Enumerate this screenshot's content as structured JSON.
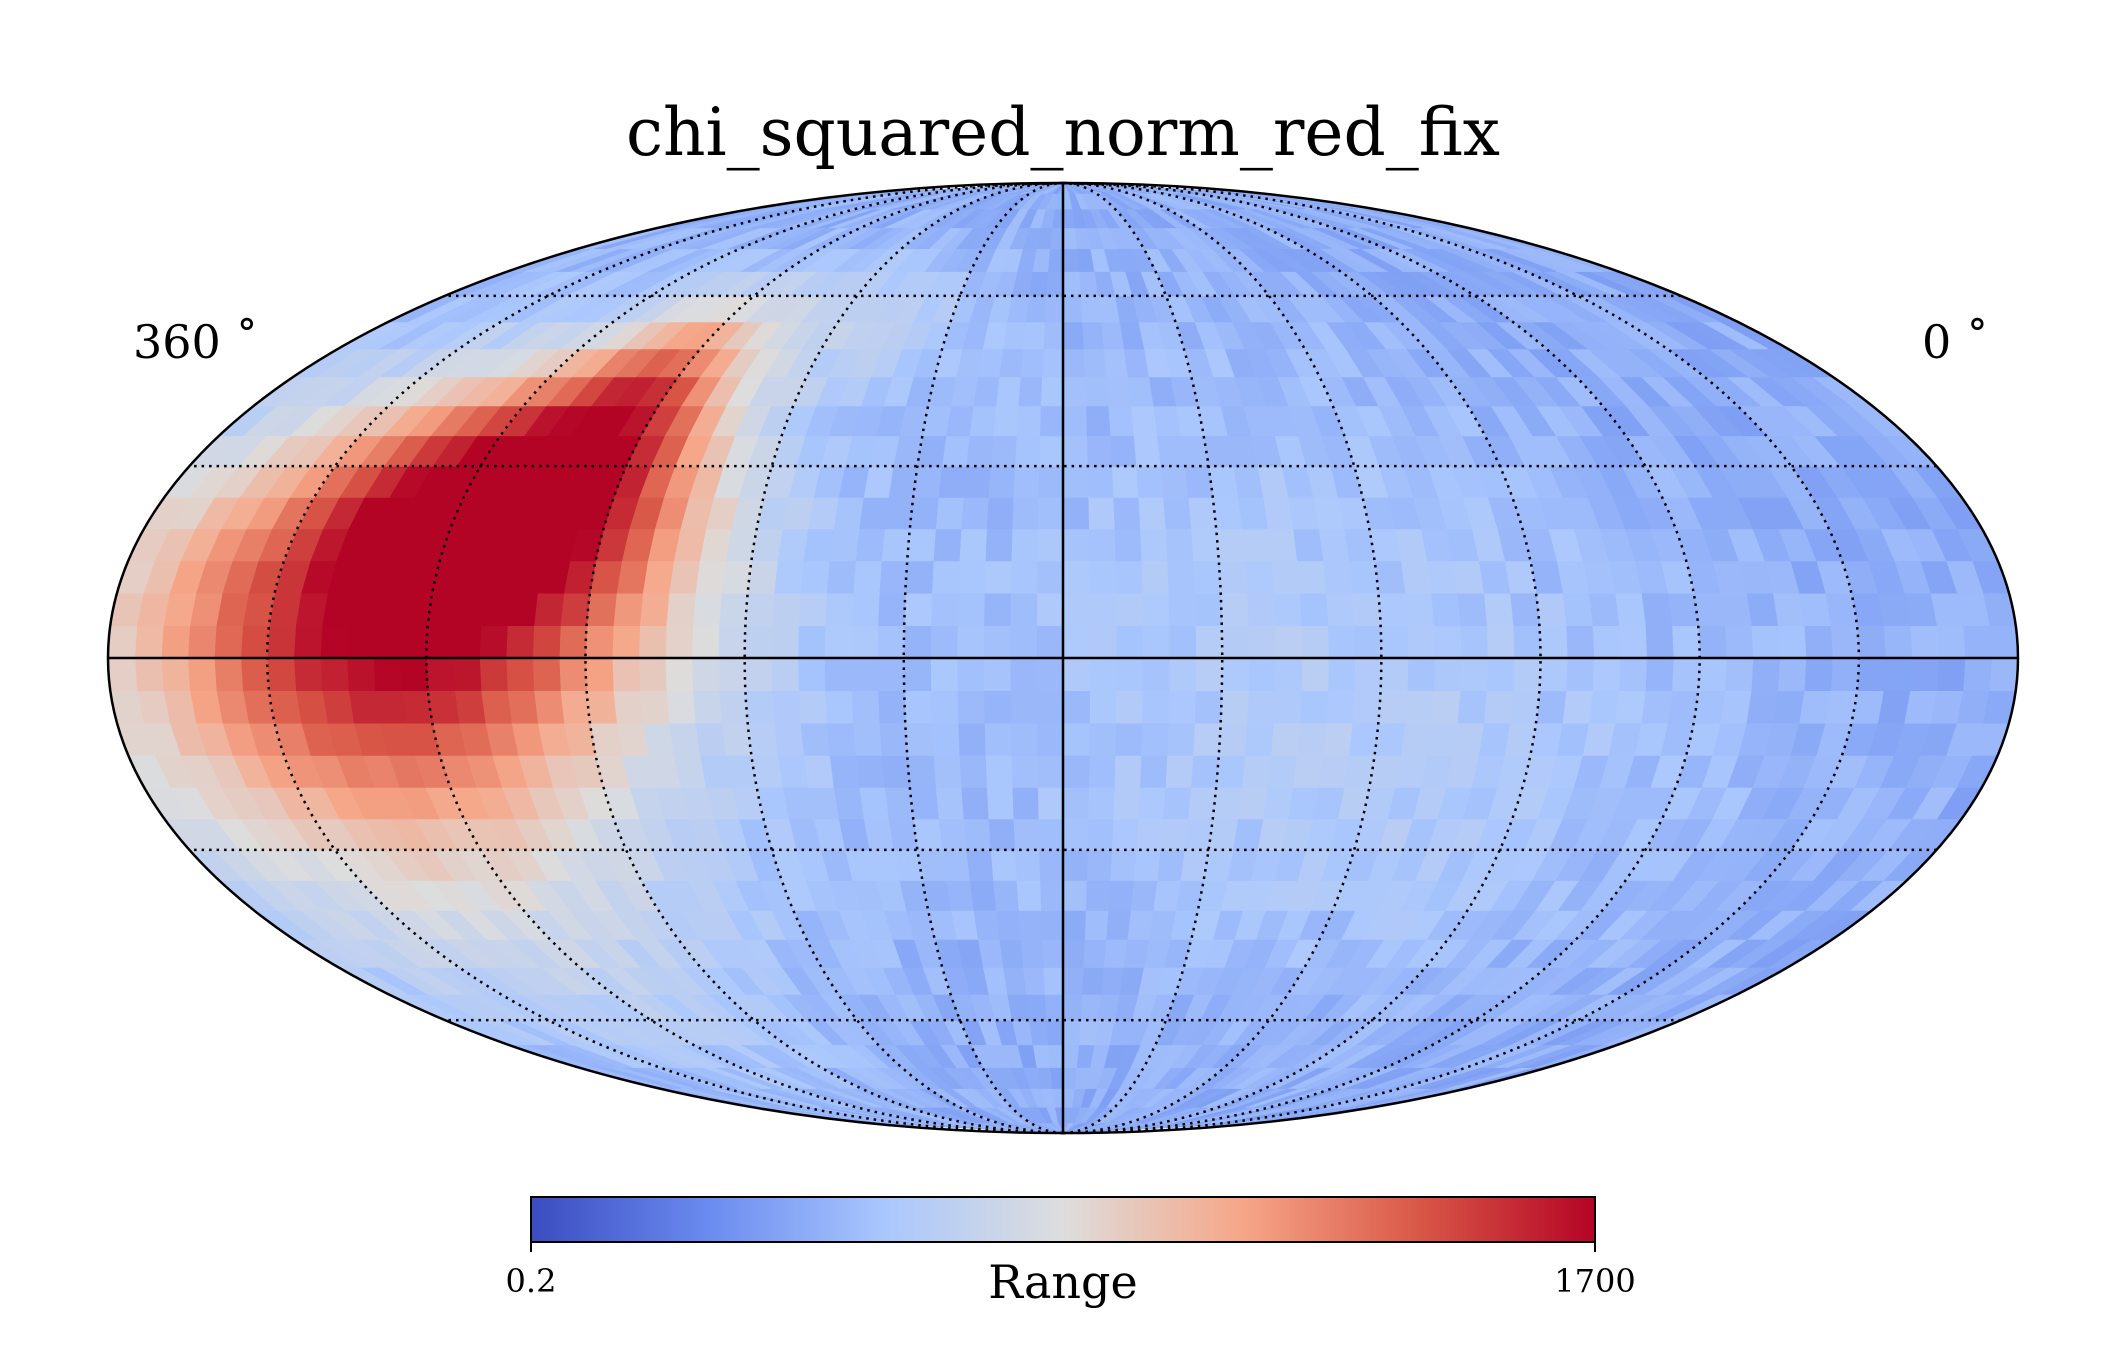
{
  "chart_data": {
    "type": "heatmap",
    "projection": "mollweide",
    "title": "chi_squared_norm_red_fix",
    "longitude_labels": {
      "left": "360 ˚",
      "right": "0 ˚"
    },
    "graticule": {
      "meridian_spacing_deg": 30,
      "parallel_spacing_deg": 30,
      "style": "dotted",
      "central_meridian_solid": true,
      "equator_solid": true
    },
    "colormap": {
      "name": "coolwarm",
      "min_label": "0.2",
      "max_label": "1700",
      "min": 0.2,
      "max": 1700,
      "label": "Range",
      "stops": [
        "#3b4cc0",
        "#6a8bef",
        "#aac7fd",
        "#dddddd",
        "#f6a789",
        "#d95847",
        "#b40426"
      ]
    },
    "hotspots": [
      {
        "lon": 110,
        "lat": 25,
        "value": 1650,
        "spread_lon": 20,
        "spread_lat": 12
      },
      {
        "lon": 122,
        "lat": 12,
        "value": 1150,
        "spread_lon": 30,
        "spread_lat": 16
      },
      {
        "lon": 95,
        "lat": 42,
        "value": 1000,
        "spread_lon": 12,
        "spread_lat": 10
      },
      {
        "lon": 128,
        "lat": -5,
        "value": 700,
        "spread_lon": 22,
        "spread_lat": 14
      },
      {
        "lon": 140,
        "lat": 5,
        "value": 550,
        "spread_lon": 45,
        "spread_lat": 30
      },
      {
        "lon": 130,
        "lat": -35,
        "value": 330,
        "spread_lon": 40,
        "spread_lat": 25
      },
      {
        "lon": 60,
        "lat": 55,
        "value": 320,
        "spread_lon": 25,
        "spread_lat": 10
      },
      {
        "lon": -60,
        "lat": -20,
        "value": 250,
        "spread_lon": 50,
        "spread_lat": 25
      },
      {
        "lon": -40,
        "lat": 20,
        "value": 220,
        "spread_lon": 40,
        "spread_lat": 30
      }
    ],
    "background_value": 150
  }
}
